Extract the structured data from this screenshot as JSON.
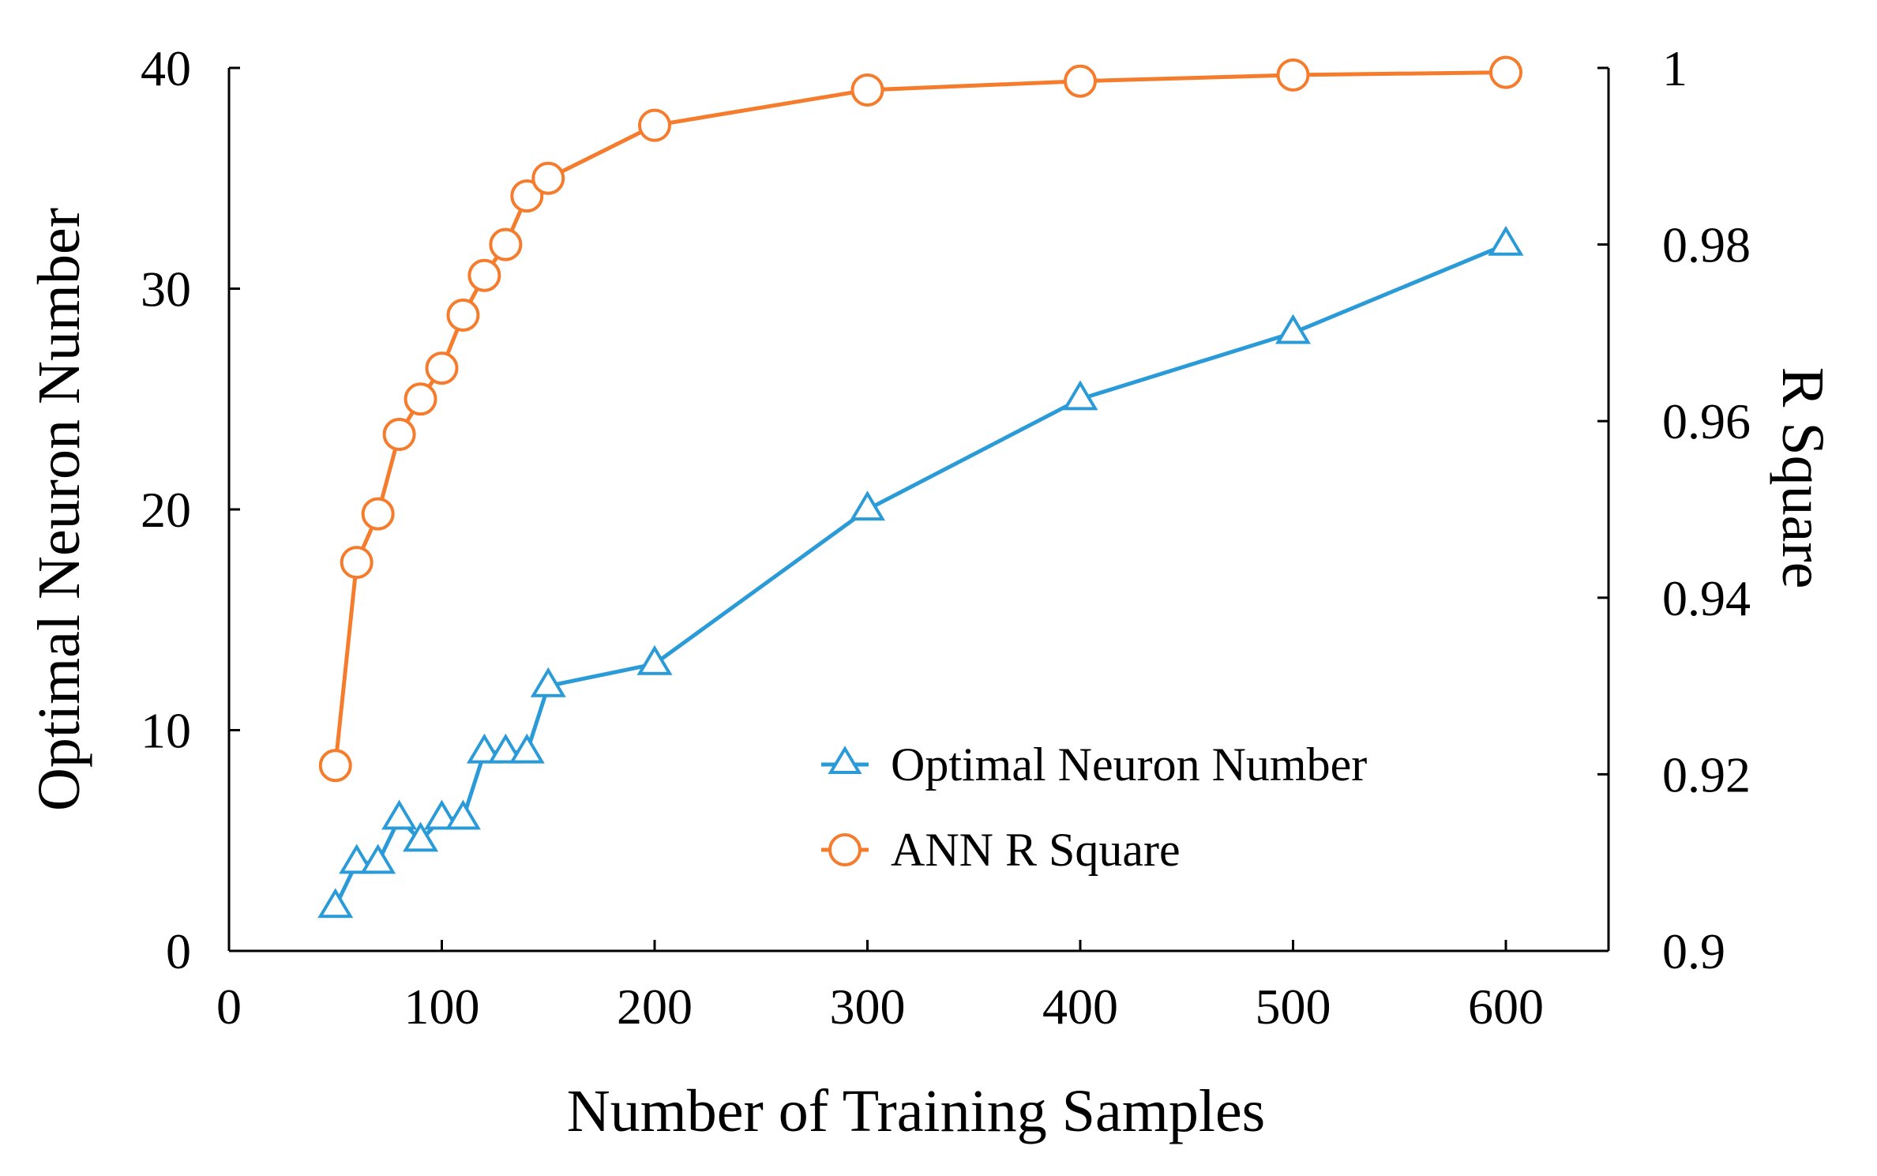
{
  "chart_data": {
    "type": "line",
    "xlabel": "Number of Training Samples",
    "ylabel_left": "Optimal Neuron Number",
    "ylabel_right": "R Square",
    "xlim": [
      0,
      650
    ],
    "ylim_left": [
      0,
      40
    ],
    "ylim_right": [
      0.9,
      1.0
    ],
    "x_ticks": [
      "0",
      "100",
      "200",
      "300",
      "400",
      "500",
      "600"
    ],
    "y_left_ticks": [
      "0",
      "10",
      "20",
      "30",
      "40"
    ],
    "y_right_ticks": [
      "0.9",
      "0.92",
      "0.94",
      "0.96",
      "0.98",
      "1"
    ],
    "legend_position": "lower-right",
    "series": [
      {
        "name": "Optimal Neuron Number",
        "axis": "left",
        "marker": "triangle",
        "color": "#2b9bd8",
        "x": [
          50,
          60,
          70,
          80,
          90,
          100,
          110,
          120,
          130,
          140,
          150,
          200,
          300,
          400,
          500,
          600
        ],
        "y": [
          2,
          4,
          4,
          6,
          5,
          6,
          6,
          9,
          9,
          9,
          12,
          13,
          20,
          25,
          28,
          32
        ]
      },
      {
        "name": "ANN R Square",
        "axis": "right",
        "marker": "circle",
        "color": "#f47c2c",
        "x": [
          50,
          60,
          70,
          80,
          90,
          100,
          110,
          120,
          130,
          140,
          150,
          200,
          300,
          400,
          500,
          600
        ],
        "y": [
          0.921,
          0.944,
          0.9495,
          0.9585,
          0.9625,
          0.966,
          0.972,
          0.9765,
          0.98,
          0.9855,
          0.9875,
          0.9935,
          0.9975,
          0.9985,
          0.9992,
          0.9995
        ]
      }
    ]
  }
}
